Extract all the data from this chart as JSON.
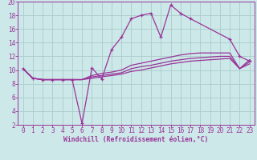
{
  "xlabel": "Windchill (Refroidissement éolien,°C)",
  "x": [
    0,
    1,
    2,
    3,
    4,
    5,
    6,
    7,
    8,
    9,
    10,
    11,
    12,
    13,
    14,
    15,
    16,
    17,
    18,
    19,
    20,
    21,
    22,
    23
  ],
  "line1": [
    10.2,
    8.8,
    8.6,
    8.6,
    8.6,
    8.6,
    2.2,
    10.3,
    8.7,
    13.0,
    14.8,
    17.5,
    18.0,
    18.3,
    14.8,
    19.5,
    18.3,
    17.5,
    null,
    null,
    null,
    14.5,
    12.0,
    11.3
  ],
  "line2": [
    10.2,
    8.8,
    8.6,
    8.6,
    8.6,
    8.6,
    8.6,
    9.2,
    9.5,
    9.7,
    10.0,
    10.7,
    11.0,
    11.3,
    11.6,
    11.9,
    12.2,
    12.4,
    12.5,
    12.5,
    12.5,
    12.5,
    10.2,
    11.5
  ],
  "line3": [
    10.2,
    8.8,
    8.6,
    8.6,
    8.6,
    8.6,
    8.6,
    9.0,
    9.2,
    9.4,
    9.6,
    10.2,
    10.5,
    10.7,
    11.0,
    11.3,
    11.5,
    11.7,
    11.8,
    11.9,
    12.0,
    12.0,
    10.2,
    11.2
  ],
  "line4": [
    10.2,
    8.8,
    8.6,
    8.6,
    8.6,
    8.6,
    8.6,
    8.8,
    9.0,
    9.2,
    9.4,
    9.8,
    10.0,
    10.3,
    10.6,
    10.9,
    11.1,
    11.3,
    11.4,
    11.5,
    11.6,
    11.7,
    10.2,
    10.9
  ],
  "bg_color": "#cce8e8",
  "line_color": "#993399",
  "grid_color": "#aacccc",
  "ylim": [
    2,
    20
  ],
  "xlim": [
    -0.5,
    23.5
  ],
  "yticks": [
    2,
    4,
    6,
    8,
    10,
    12,
    14,
    16,
    18,
    20
  ],
  "xticks": [
    0,
    1,
    2,
    3,
    4,
    5,
    6,
    7,
    8,
    9,
    10,
    11,
    12,
    13,
    14,
    15,
    16,
    17,
    18,
    19,
    20,
    21,
    22,
    23
  ],
  "tick_fontsize": 5.5,
  "xlabel_fontsize": 5.8
}
